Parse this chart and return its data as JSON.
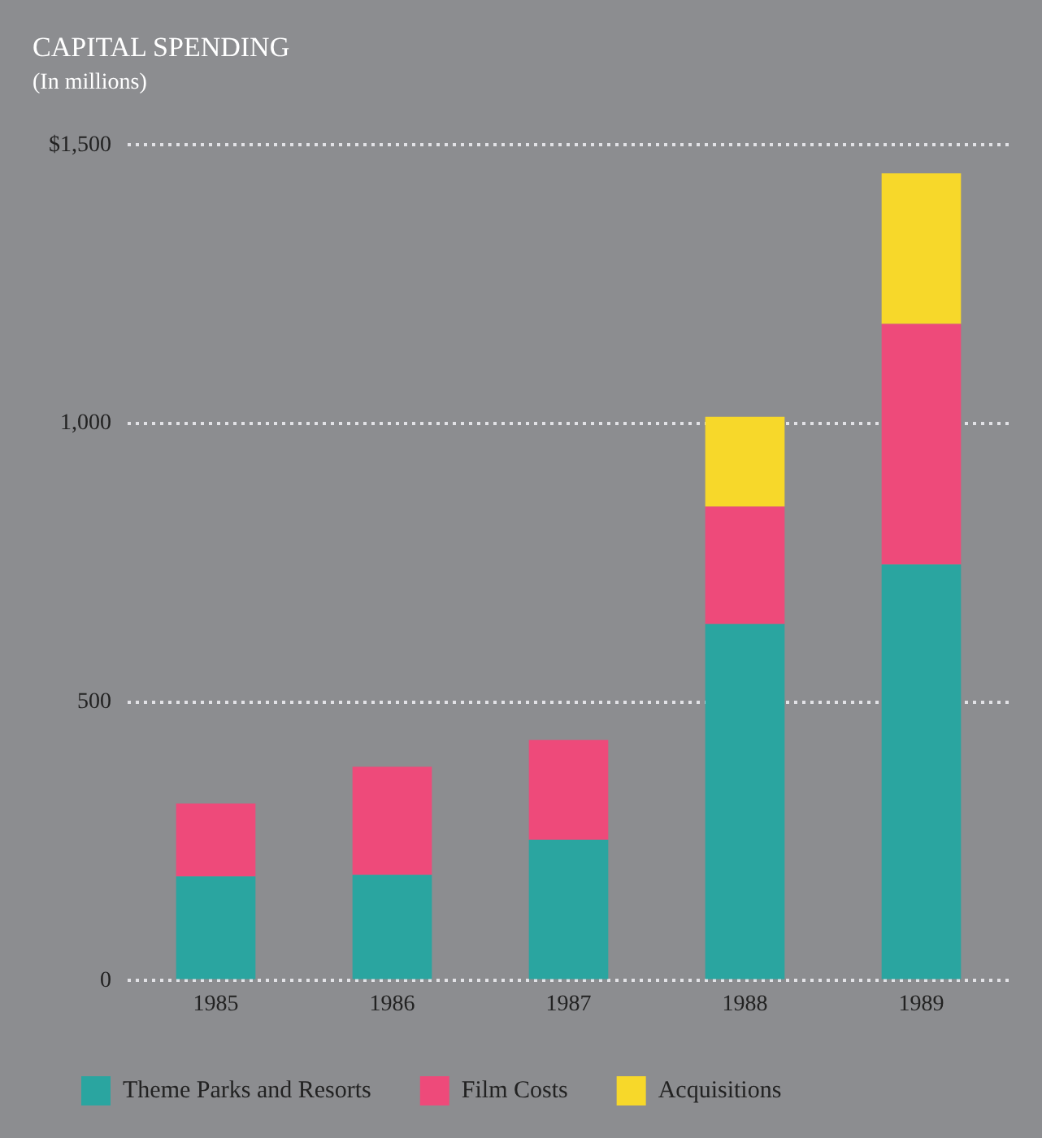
{
  "chart_data": {
    "type": "bar",
    "title": "CAPITAL SPENDING",
    "subtitle": "(In millions)",
    "categories": [
      "1985",
      "1986",
      "1987",
      "1988",
      "1989"
    ],
    "stacked": true,
    "series": [
      {
        "name": "Theme Parks and Resorts",
        "color": "#2aa5a0",
        "values": [
          187,
          190,
          253,
          640,
          747
        ]
      },
      {
        "name": "Film Costs",
        "color": "#ee4a7a",
        "values": [
          131,
          194,
          179,
          211,
          432
        ]
      },
      {
        "name": "Acquisitions",
        "color": "#f7d82a",
        "values": [
          null,
          null,
          null,
          161,
          270
        ]
      }
    ],
    "ylim": [
      0,
      1500
    ],
    "yticks": [
      0,
      500,
      {
        "value": 1000,
        "label": "1,000"
      },
      {
        "value": 1500,
        "label": "$1,500"
      }
    ],
    "grid": "y",
    "legend": "bottom"
  }
}
